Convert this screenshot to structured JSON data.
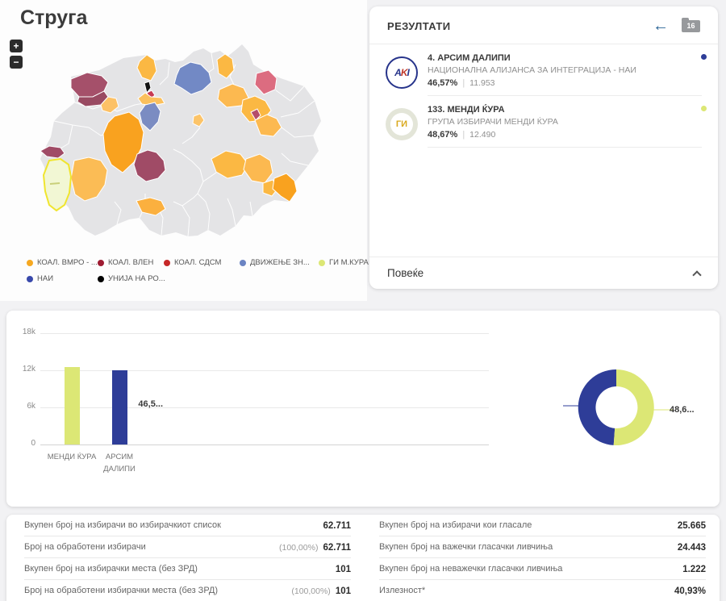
{
  "page": {
    "title": "Струга"
  },
  "map": {
    "zoom_in": "+",
    "zoom_out": "−",
    "legend": [
      {
        "label": "КОАЛ. ВМРО - ...",
        "color": "#f6a821"
      },
      {
        "label": "КОАЛ. ВЛЕН",
        "color": "#9e1b32"
      },
      {
        "label": "КОАЛ. СДСМ",
        "color": "#c62828"
      },
      {
        "label": "ДВИЖЕЊЕ ЗН...",
        "color": "#6b84c3"
      },
      {
        "label": "ГИ М.КУРА",
        "color": "#dce775"
      },
      {
        "label": "НАИ",
        "color": "#3949ab"
      },
      {
        "label": "УНИЈА НА РО...",
        "color": "#000000"
      }
    ]
  },
  "results": {
    "header": "РЕЗУЛТАТИ",
    "badge": "16",
    "more_label": "Повеќе",
    "candidates": [
      {
        "number_name": "4. АРСИМ ДАЛИПИ",
        "party": "НАЦИОНАЛНА АЛИЈАНСА ЗА ИНТЕГРАЦИЈА - НАИ",
        "percent": "46,57%",
        "votes": "11.953",
        "logo_text": "AKI",
        "color": "#2e3d98"
      },
      {
        "number_name": "133. МЕНДИ ЌУРА",
        "party": "ГРУПА ИЗБИРАЧИ МЕНДИ ЌУРА",
        "percent": "48,67%",
        "votes": "12.490",
        "logo_text": "ГИ",
        "color": "#dce775"
      }
    ]
  },
  "chart_data": [
    {
      "type": "bar",
      "categories": [
        "МЕНДИ ЌУРА",
        "АРСИМ ДАЛИПИ"
      ],
      "values": [
        12490,
        11953
      ],
      "colors": [
        "#dce775",
        "#2e3d98"
      ],
      "title": "",
      "xlabel": "",
      "ylabel": "",
      "ylim": [
        0,
        18000
      ],
      "yticks": [
        "0",
        "6k",
        "12k",
        "18k"
      ],
      "grid": true
    },
    {
      "type": "donut",
      "segments": [
        {
          "name": "МЕНДИ ЌУРА",
          "label": "48,6...",
          "value": 48.67,
          "color": "#dce775"
        },
        {
          "name": "АРСИМ ДАЛИПИ",
          "label": "46,5...",
          "value": 46.57,
          "color": "#2e3d98"
        }
      ]
    }
  ],
  "stats": {
    "left": [
      {
        "label": "Вкупен број на избирачи во избирачкиот список",
        "pre": "",
        "value": "62.711"
      },
      {
        "label": "Број на обработени избирачи",
        "pre": "(100,00%)",
        "value": "62.711"
      },
      {
        "label": "Вкупен број на избирачки места (без ЗРД)",
        "pre": "",
        "value": "101"
      },
      {
        "label": "Број на обработени избирачки места (без ЗРД)",
        "pre": "(100,00%)",
        "value": "101"
      }
    ],
    "right": [
      {
        "label": "Вкупен број на избирачи кои гласале",
        "pre": "",
        "value": "25.665"
      },
      {
        "label": "Вкупен број на важечки гласачки ливчиња",
        "pre": "",
        "value": "24.443"
      },
      {
        "label": "Вкупен број на неважечки гласачки ливчиња",
        "pre": "",
        "value": "1.222"
      },
      {
        "label": "Излезност*",
        "pre": "",
        "value": "40,93%"
      }
    ]
  }
}
